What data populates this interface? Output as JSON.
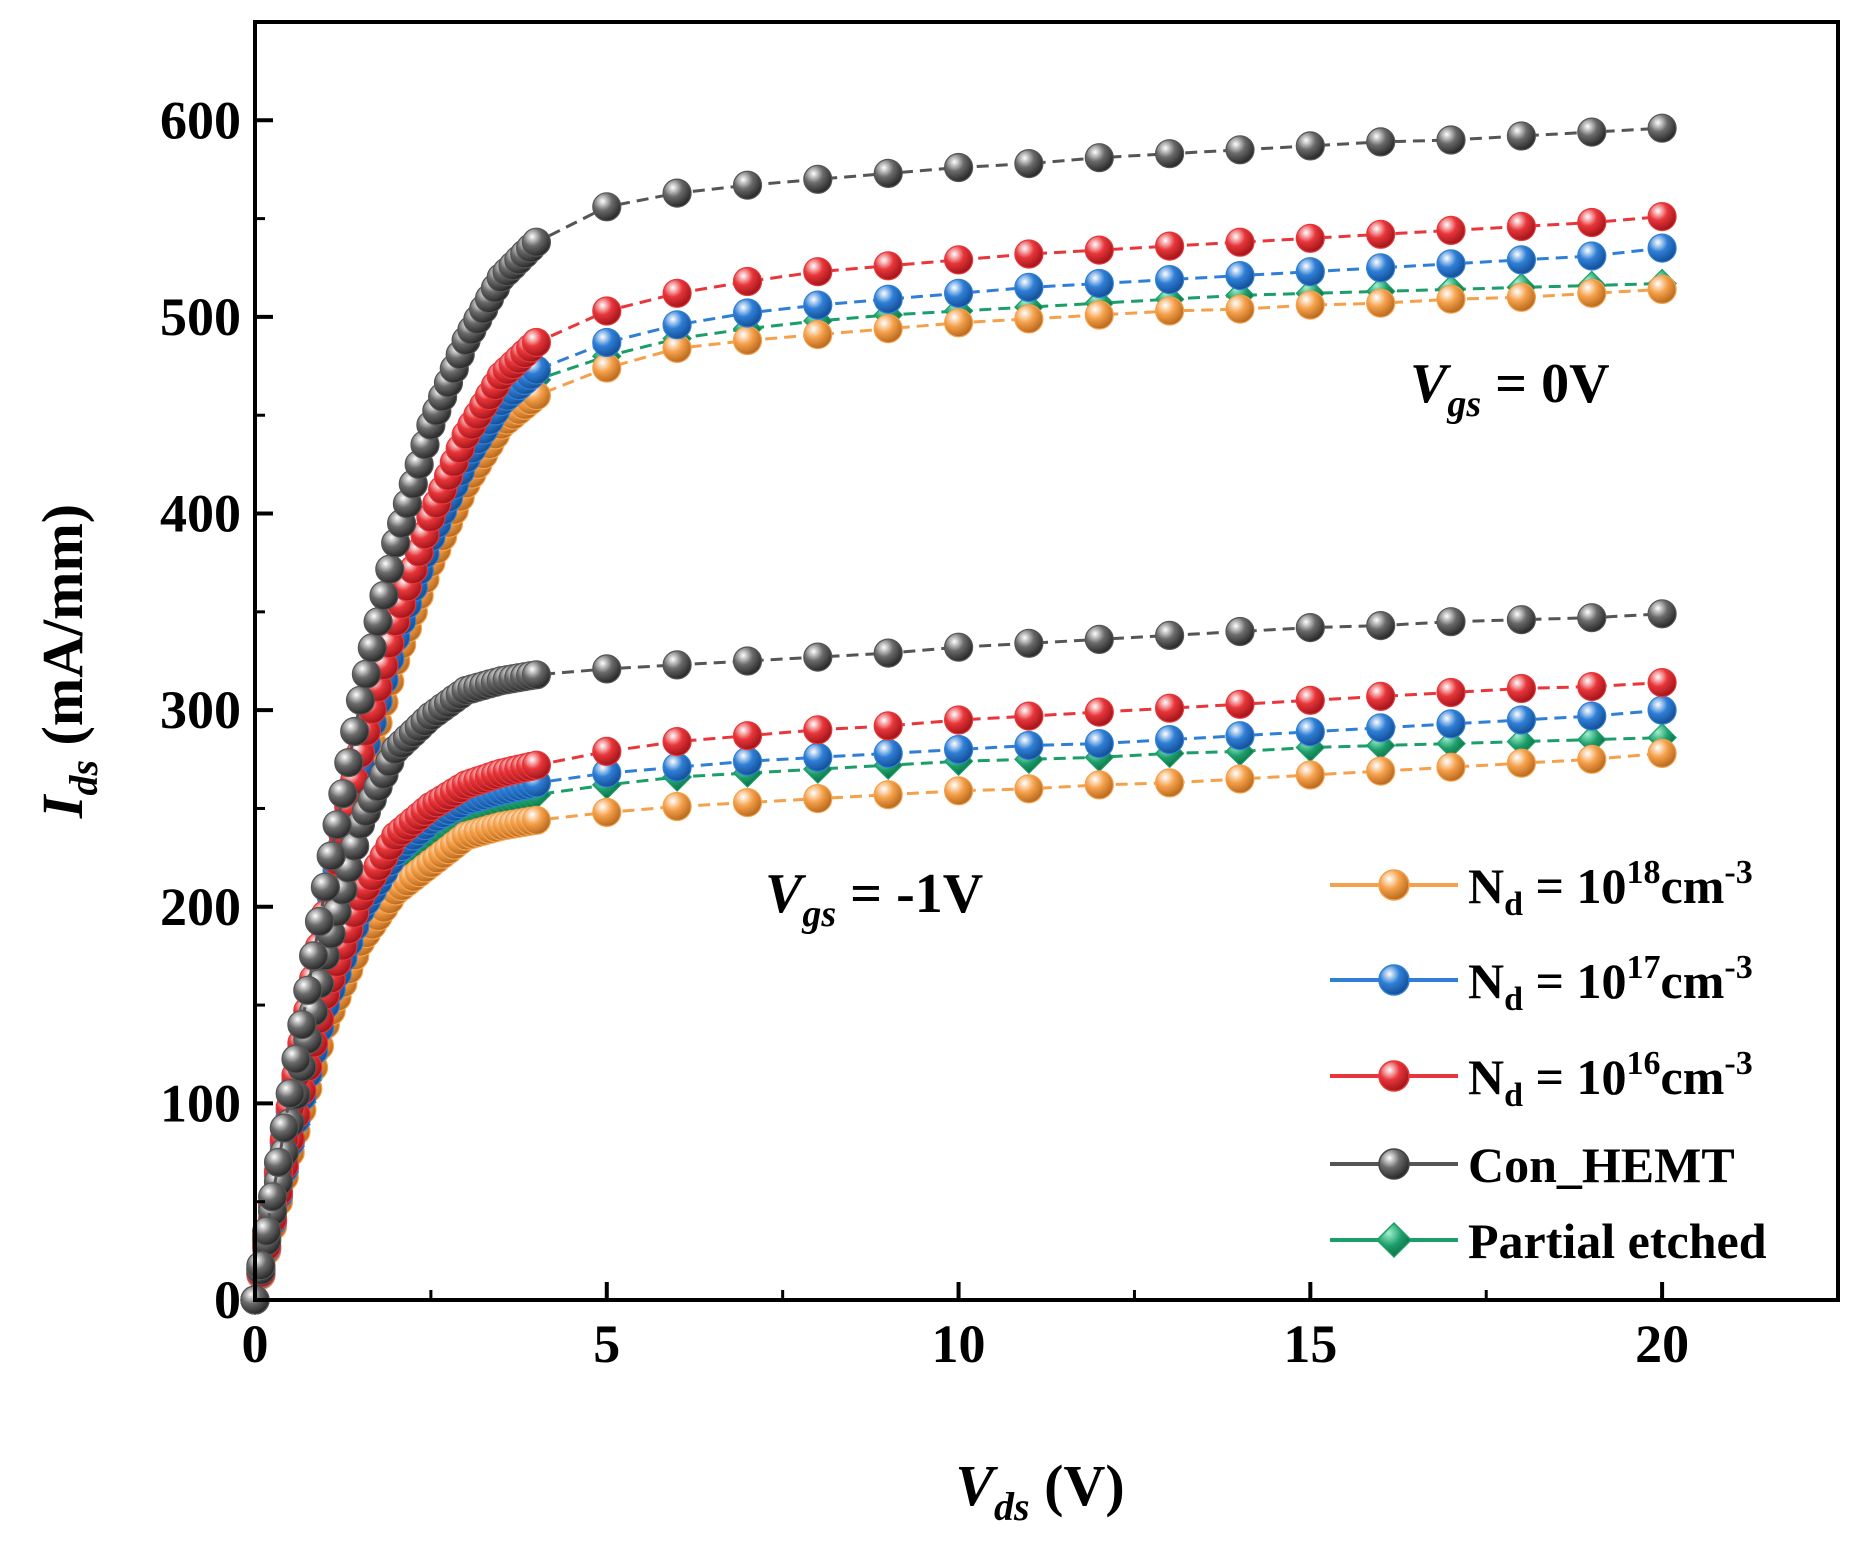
{
  "chart_data": {
    "type": "line",
    "xlabel": {
      "main": "V",
      "sub": "ds",
      "unit": " (V)"
    },
    "ylabel": {
      "main": "I",
      "sub": "ds",
      "unit": " (mA/mm)"
    },
    "xlim": [
      0,
      22.5
    ],
    "ylim": [
      0,
      650
    ],
    "xticks": [
      0,
      5,
      10,
      15,
      20
    ],
    "yticks": [
      0,
      100,
      200,
      300,
      400,
      500,
      600
    ],
    "x": [
      0,
      0.5,
      1,
      1.5,
      2,
      2.5,
      3,
      3.5,
      4,
      5,
      6,
      7,
      8,
      9,
      10,
      11,
      12,
      13,
      14,
      15,
      16,
      17,
      18,
      19,
      20
    ],
    "annotations": [
      {
        "main": "V",
        "sub": "gs",
        "rest": " = 0V"
      },
      {
        "main": "V",
        "sub": "gs",
        "rest": " = -1V"
      }
    ],
    "series": [
      {
        "name": "N_d = 10^18 cm^-3",
        "legend": {
          "base": "N",
          "sub": "d",
          "mid": " = 10",
          "sup": "18",
          "unit": "cm",
          "sup2": "-3"
        },
        "color": "#f5a04a",
        "marker": "circle",
        "vgs0": [
          0,
          92,
          185,
          262,
          325,
          375,
          415,
          445,
          460,
          474,
          484,
          488,
          491,
          494,
          497,
          499,
          501,
          503,
          504,
          506,
          507,
          509,
          510,
          512,
          514
        ],
        "vgsm1": [
          0,
          75,
          140,
          182,
          208,
          222,
          236,
          241,
          244,
          248,
          251,
          253,
          255,
          257,
          259,
          260,
          262,
          263,
          265,
          267,
          269,
          271,
          273,
          275,
          278
        ]
      },
      {
        "name": "N_d = 10^17 cm^-3",
        "legend": {
          "base": "N",
          "sub": "d",
          "mid": " = 10",
          "sup": "17",
          "unit": "cm",
          "sup2": "-3"
        },
        "color": "#2f7fd6",
        "marker": "circle",
        "vgs0": [
          0,
          96,
          192,
          272,
          337,
          388,
          428,
          457,
          473,
          487,
          496,
          502,
          506,
          509,
          512,
          515,
          517,
          519,
          521,
          523,
          525,
          527,
          529,
          531,
          535
        ],
        "vgsm1": [
          0,
          80,
          150,
          198,
          228,
          244,
          254,
          259,
          263,
          268,
          271,
          274,
          276,
          278,
          280,
          282,
          283,
          285,
          287,
          289,
          291,
          293,
          295,
          297,
          300
        ]
      },
      {
        "name": "N_d = 10^16 cm^-3",
        "legend": {
          "base": "N",
          "sub": "d",
          "mid": " = 10",
          "sup": "16",
          "unit": "cm",
          "sup2": "-3"
        },
        "color": "#e8363a",
        "marker": "circle",
        "vgs0": [
          0,
          98,
          196,
          278,
          345,
          398,
          440,
          470,
          487,
          503,
          512,
          518,
          523,
          526,
          529,
          532,
          534,
          536,
          538,
          540,
          542,
          544,
          546,
          548,
          551
        ],
        "vgsm1": [
          0,
          82,
          155,
          205,
          236,
          251,
          262,
          268,
          272,
          279,
          284,
          287,
          290,
          292,
          295,
          297,
          299,
          301,
          303,
          305,
          307,
          309,
          311,
          312,
          314
        ]
      },
      {
        "name": "Con_HEMT",
        "legend": {
          "base": "Con_HEMT"
        },
        "color": "#555555",
        "marker": "circle",
        "vgs0": [
          0,
          105,
          210,
          305,
          385,
          445,
          488,
          520,
          538,
          556,
          563,
          567,
          570,
          573,
          576,
          578,
          581,
          583,
          585,
          587,
          589,
          590,
          592,
          594,
          596
        ],
        "vgsm1": [
          0,
          90,
          175,
          242,
          280,
          297,
          310,
          315,
          318,
          321,
          323,
          325,
          327,
          329,
          332,
          334,
          336,
          338,
          340,
          342,
          343,
          345,
          346,
          347,
          349
        ]
      },
      {
        "name": "Partial etched",
        "legend": {
          "base": "Partial etched"
        },
        "color": "#1c9e6a",
        "marker": "diamond",
        "vgs0": [
          0,
          94,
          188,
          267,
          332,
          382,
          422,
          452,
          468,
          480,
          489,
          494,
          498,
          501,
          503,
          505,
          507,
          509,
          511,
          512,
          513,
          514,
          515,
          516,
          517
        ],
        "vgsm1": [
          0,
          78,
          146,
          192,
          222,
          236,
          248,
          254,
          257,
          262,
          266,
          268,
          270,
          272,
          274,
          275,
          276,
          278,
          279,
          281,
          282,
          283,
          284,
          285,
          286
        ]
      }
    ]
  }
}
